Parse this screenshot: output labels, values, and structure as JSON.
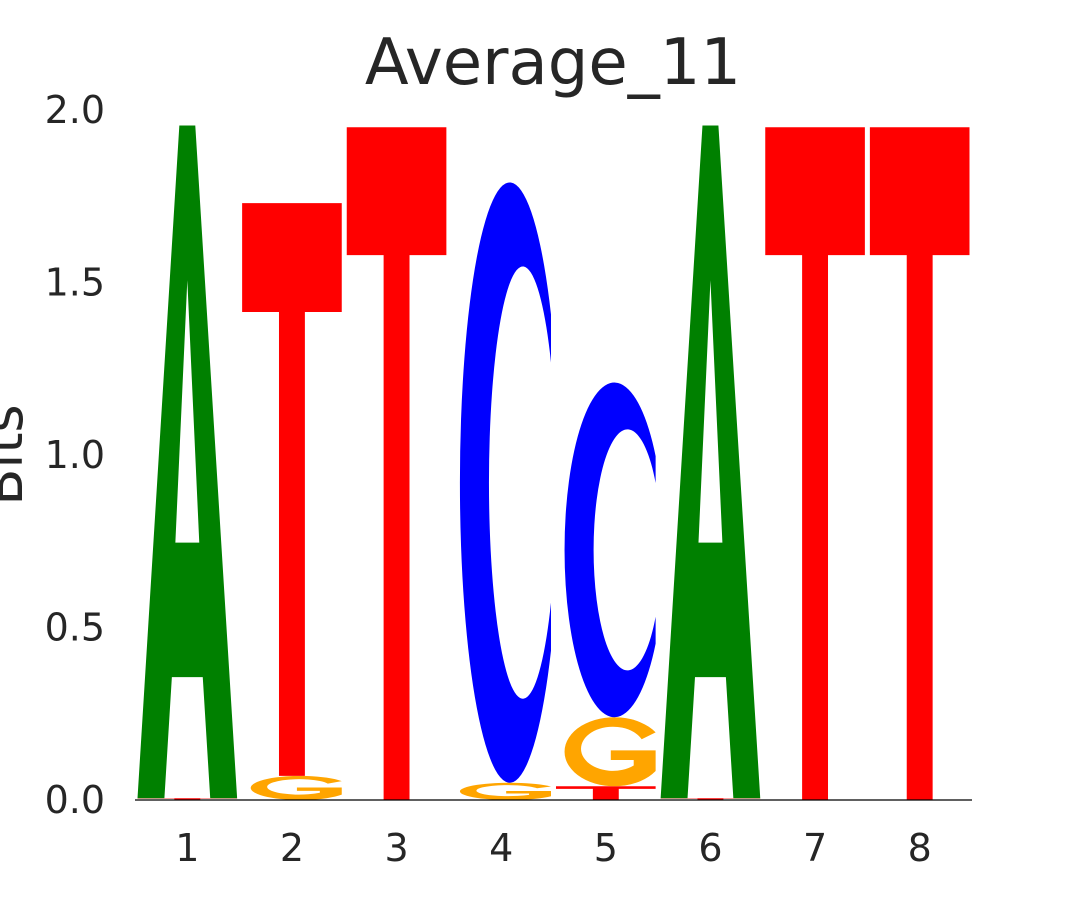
{
  "chart_data": {
    "type": "sequence-logo",
    "title": "Average_11",
    "xlabel": "",
    "ylabel": "Bits",
    "ylim": [
      0,
      2.0
    ],
    "yticks": [
      "0.0",
      "0.5",
      "1.0",
      "1.5",
      "2.0"
    ],
    "positions": [
      "1",
      "2",
      "3",
      "4",
      "5",
      "6",
      "7",
      "8"
    ],
    "colors": {
      "A": "#008000",
      "C": "#0000ff",
      "G": "#ffa500",
      "T": "#ff0000"
    },
    "stacks": [
      {
        "position": "1",
        "letters": [
          {
            "base": "T",
            "bits": 0.005
          },
          {
            "base": "A",
            "bits": 1.95
          }
        ]
      },
      {
        "position": "2",
        "letters": [
          {
            "base": "G",
            "bits": 0.07
          },
          {
            "base": "T",
            "bits": 1.66
          }
        ]
      },
      {
        "position": "3",
        "letters": [
          {
            "base": "T",
            "bits": 1.95
          }
        ]
      },
      {
        "position": "4",
        "letters": [
          {
            "base": "G",
            "bits": 0.05
          },
          {
            "base": "C",
            "bits": 1.74
          }
        ]
      },
      {
        "position": "5",
        "letters": [
          {
            "base": "T",
            "bits": 0.04
          },
          {
            "base": "G",
            "bits": 0.2
          },
          {
            "base": "C",
            "bits": 0.97
          }
        ]
      },
      {
        "position": "6",
        "letters": [
          {
            "base": "T",
            "bits": 0.005
          },
          {
            "base": "A",
            "bits": 1.95
          }
        ]
      },
      {
        "position": "7",
        "letters": [
          {
            "base": "T",
            "bits": 1.95
          }
        ]
      },
      {
        "position": "8",
        "letters": [
          {
            "base": "T",
            "bits": 1.95
          }
        ]
      }
    ]
  }
}
